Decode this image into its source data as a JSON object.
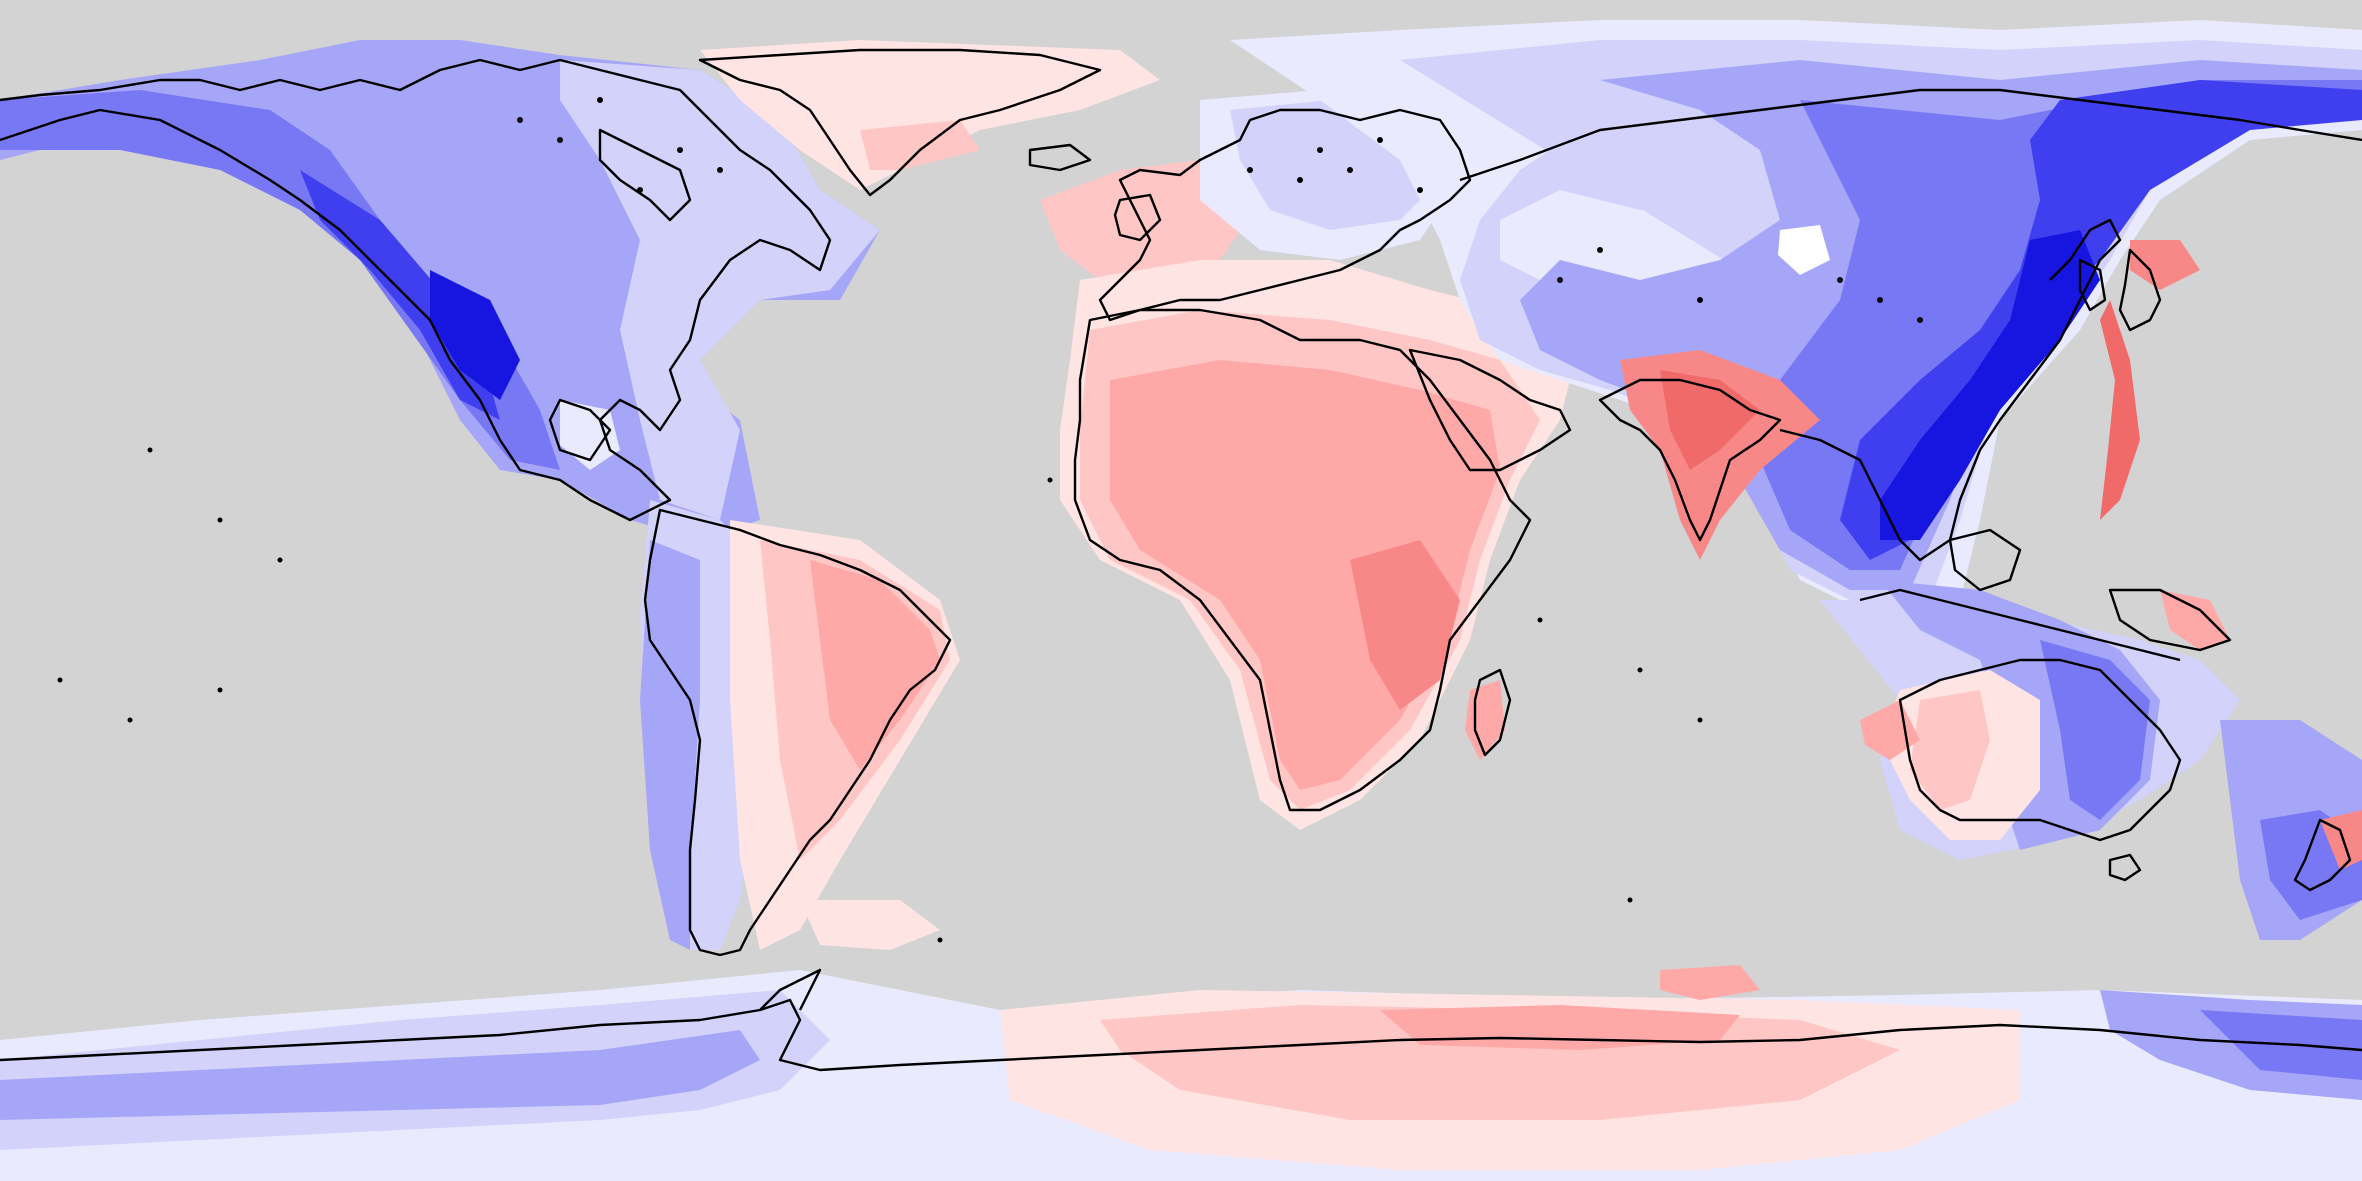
{
  "map": {
    "projection": "equirectangular",
    "ocean_color": "#d3d3d3",
    "coastline_color": "#000000",
    "palette": {
      "blue_dark": "#1616e0",
      "blue_strong": "#3f3ff0",
      "blue_mid": "#7878f4",
      "blue_light": "#a6a6f8",
      "blue_pale": "#d2d2fb",
      "blue_faint": "#eaeaff",
      "white": "#ffffff",
      "red_faint": "#ffe4e4",
      "red_pale": "#ffc6c6",
      "red_light": "#ffa8a8",
      "red_mid": "#f88888",
      "red_strong": "#f06a6a",
      "red_dark": "#e45050"
    }
  }
}
